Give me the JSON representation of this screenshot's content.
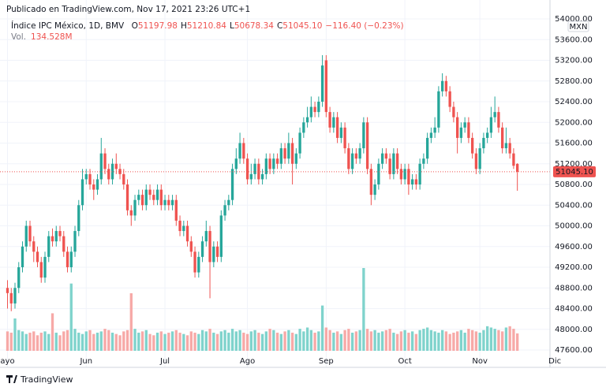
{
  "header": {
    "published": "Publicado en TradingView.com, Nov 17, 2021 23:26 UTC+1",
    "brand": "TradingView"
  },
  "chart_data": {
    "type": "candlestick",
    "title": "Índice IPC México, 1D, BMV",
    "ohlc_legend": [
      {
        "key": "O",
        "value": "51197.98"
      },
      {
        "key": "H",
        "value": "51210.84"
      },
      {
        "key": "L",
        "value": "50678.34"
      },
      {
        "key": "C",
        "value": "51045.10"
      }
    ],
    "change_label": "−116.40 (−0.23%)",
    "volume_title": "Vol.",
    "volume_value_label": "134.528M",
    "currency": "MXN",
    "last_label": "51045.10",
    "up_color": "#26a69a",
    "down_color": "#ef5350",
    "up_volume_color": "#7fd3cc",
    "down_volume_color": "#f7a9a7",
    "grid": true,
    "open": [
      48800,
      48700,
      48500,
      48800,
      49200,
      49600,
      50000,
      49700,
      49500,
      49300,
      49000,
      49400,
      49800,
      49700,
      49900,
      49800,
      49500,
      49200,
      49500,
      49900,
      50400,
      50900,
      51000,
      50800,
      50700,
      50900,
      51400,
      51100,
      50900,
      51200,
      51100,
      51000,
      50800,
      50300,
      50200,
      50500,
      50600,
      50400,
      50700,
      50600,
      50500,
      50700,
      50400,
      50500,
      50400,
      50500,
      50100,
      49900,
      50000,
      49700,
      49500,
      49100,
      49400,
      49700,
      49900,
      49300,
      49600,
      49400,
      50200,
      50400,
      50500,
      51100,
      51300,
      51600,
      51300,
      50900,
      51000,
      51200,
      50900,
      51000,
      51300,
      51100,
      51300,
      51200,
      51500,
      51300,
      51600,
      51200,
      51400,
      51800,
      52000,
      52100,
      52300,
      52200,
      52400,
      53200,
      52200,
      51900,
      52100,
      51700,
      51900,
      51500,
      51100,
      51400,
      51300,
      51500,
      52000,
      51100,
      50600,
      50800,
      51200,
      51400,
      51300,
      51000,
      51400,
      51100,
      50900,
      51100,
      50800,
      50900,
      50800,
      51200,
      51300,
      51700,
      51800,
      51900,
      52600,
      52800,
      52600,
      52300,
      52100,
      51700,
      51900,
      52000,
      51700,
      51400,
      51100,
      51500,
      51700,
      51800,
      52100,
      52200,
      51900,
      51500,
      51600,
      51400,
      51197.98
    ],
    "high": [
      48950,
      48800,
      48900,
      49300,
      49700,
      50100,
      50100,
      49800,
      49600,
      49400,
      49500,
      49900,
      49950,
      50000,
      50000,
      49900,
      49600,
      49600,
      50000,
      50500,
      51100,
      51100,
      51100,
      50900,
      51000,
      51700,
      51500,
      51200,
      51300,
      51400,
      51200,
      51100,
      50900,
      50400,
      50600,
      50700,
      50700,
      50800,
      50800,
      50700,
      50800,
      50800,
      50600,
      50600,
      50600,
      50600,
      50200,
      50100,
      50100,
      49800,
      49600,
      49500,
      49800,
      50100,
      50000,
      49700,
      49700,
      50300,
      50500,
      50600,
      51200,
      51500,
      51800,
      51700,
      51400,
      51200,
      51300,
      51300,
      51100,
      51400,
      51400,
      51400,
      51400,
      51600,
      51600,
      51800,
      51700,
      51500,
      51900,
      52100,
      52300,
      52500,
      52400,
      52500,
      53300,
      53300,
      52300,
      52200,
      52200,
      52000,
      52000,
      51600,
      51500,
      51500,
      51600,
      52100,
      52100,
      51200,
      50900,
      51300,
      51500,
      51500,
      51400,
      51500,
      51500,
      51200,
      51200,
      51200,
      51000,
      51000,
      51300,
      51400,
      51800,
      51900,
      52100,
      52700,
      52950,
      52900,
      52700,
      52400,
      52200,
      52000,
      52100,
      52100,
      51800,
      51500,
      51600,
      51800,
      51900,
      52300,
      52500,
      52300,
      52000,
      51900,
      51700,
      51500,
      51210.84
    ],
    "low": [
      48400,
      48350,
      48400,
      48700,
      49100,
      49500,
      49600,
      49300,
      49200,
      48900,
      48900,
      49300,
      49600,
      49600,
      49700,
      49400,
      49100,
      49100,
      49400,
      49800,
      50300,
      50800,
      50700,
      50500,
      50600,
      50800,
      51000,
      50800,
      50800,
      51000,
      50900,
      50700,
      50200,
      50000,
      50100,
      50400,
      50300,
      50300,
      50500,
      50400,
      50400,
      50300,
      50300,
      50300,
      50300,
      50000,
      49800,
      49800,
      49600,
      49400,
      49000,
      49000,
      49300,
      49600,
      48600,
      49200,
      49300,
      49300,
      50100,
      50300,
      50400,
      51000,
      51200,
      51200,
      50800,
      50800,
      50900,
      50800,
      50800,
      50900,
      51000,
      51000,
      51100,
      51100,
      51200,
      51200,
      50800,
      51100,
      51300,
      51700,
      51900,
      52000,
      52100,
      52100,
      52300,
      52100,
      51800,
      51800,
      51600,
      51600,
      51400,
      51000,
      51000,
      51200,
      51200,
      51400,
      51000,
      50400,
      50500,
      50700,
      51100,
      51200,
      50900,
      50900,
      51000,
      50800,
      50800,
      50600,
      50700,
      50700,
      50700,
      51100,
      51200,
      51600,
      51700,
      51800,
      52500,
      52500,
      52200,
      52000,
      51400,
      51600,
      51800,
      51600,
      51300,
      51000,
      51000,
      51400,
      51600,
      51700,
      52000,
      51800,
      51400,
      51400,
      51300,
      51100,
      50678.34
    ],
    "close": [
      48700,
      48500,
      48800,
      49200,
      49600,
      50000,
      49700,
      49500,
      49300,
      49000,
      49400,
      49800,
      49700,
      49900,
      49800,
      49500,
      49200,
      49500,
      49900,
      50400,
      50900,
      51000,
      50800,
      50700,
      50900,
      51400,
      51100,
      50900,
      51200,
      51100,
      51000,
      50800,
      50300,
      50200,
      50500,
      50600,
      50400,
      50700,
      50600,
      50500,
      50700,
      50400,
      50500,
      50400,
      50500,
      50100,
      49900,
      50000,
      49700,
      49500,
      49100,
      49400,
      49700,
      49900,
      49300,
      49600,
      49400,
      50200,
      50400,
      50500,
      51100,
      51300,
      51600,
      51300,
      50900,
      51000,
      51200,
      50900,
      51000,
      51300,
      51100,
      51300,
      51200,
      51500,
      51300,
      51600,
      51200,
      51400,
      51800,
      52000,
      52100,
      52300,
      52200,
      52400,
      53100,
      52200,
      51900,
      52100,
      51700,
      51900,
      51500,
      51100,
      51400,
      51300,
      51500,
      52000,
      51100,
      50600,
      50800,
      51200,
      51400,
      51300,
      51000,
      51400,
      51100,
      50900,
      51100,
      50800,
      50900,
      50800,
      51200,
      51300,
      51700,
      51800,
      51900,
      52600,
      52800,
      52600,
      52300,
      52100,
      51700,
      51900,
      52000,
      51700,
      51400,
      51100,
      51500,
      51700,
      51800,
      52100,
      52200,
      51900,
      51500,
      51600,
      51400,
      51161.5,
      51045.1
    ],
    "volume": [
      150,
      140,
      250,
      160,
      150,
      130,
      140,
      150,
      120,
      140,
      150,
      130,
      290,
      140,
      120,
      150,
      160,
      520,
      170,
      140,
      130,
      150,
      160,
      130,
      140,
      150,
      170,
      160,
      140,
      130,
      120,
      150,
      160,
      445,
      170,
      140,
      150,
      160,
      130,
      120,
      140,
      150,
      130,
      140,
      150,
      160,
      140,
      130,
      120,
      150,
      140,
      130,
      160,
      150,
      170,
      140,
      130,
      150,
      160,
      140,
      170,
      150,
      160,
      140,
      130,
      150,
      160,
      140,
      130,
      150,
      170,
      160,
      140,
      130,
      150,
      160,
      140,
      130,
      170,
      150,
      180,
      160,
      140,
      150,
      350,
      180,
      160,
      140,
      150,
      130,
      160,
      170,
      140,
      150,
      160,
      640,
      170,
      150,
      160,
      140,
      150,
      160,
      170,
      140,
      130,
      150,
      160,
      140,
      150,
      130,
      160,
      170,
      180,
      160,
      150,
      140,
      160,
      150,
      130,
      140,
      150,
      160,
      140,
      170,
      160,
      150,
      140,
      160,
      190,
      180,
      170,
      160,
      150,
      180,
      190,
      170,
      134.528
    ],
    "xlim": [
      -2,
      144.7
    ],
    "xticks": [
      {
        "value": 0,
        "label": "ayo"
      },
      {
        "value": 21,
        "label": "Jun"
      },
      {
        "value": 42,
        "label": "Jul"
      },
      {
        "value": 64,
        "label": "Ago"
      },
      {
        "value": 85,
        "label": "Sep"
      },
      {
        "value": 106,
        "label": "Oct"
      },
      {
        "value": 126,
        "label": "Nov"
      },
      {
        "value": 146,
        "label": "Dic"
      }
    ],
    "ylim": [
      47600,
      54000
    ],
    "yticks": [
      {
        "value": 47600,
        "label": "47600.00"
      },
      {
        "value": 48000,
        "label": "48000.00"
      },
      {
        "value": 48400,
        "label": "48400.00"
      },
      {
        "value": 48800,
        "label": "48800.00"
      },
      {
        "value": 49200,
        "label": "49200.00"
      },
      {
        "value": 49600,
        "label": "49600.00"
      },
      {
        "value": 50000,
        "label": "50000.00"
      },
      {
        "value": 50400,
        "label": "50400.00"
      },
      {
        "value": 50800,
        "label": "50800.00"
      },
      {
        "value": 51200,
        "label": "51200.00"
      },
      {
        "value": 51600,
        "label": "51600.00"
      },
      {
        "value": 52000,
        "label": "52000.00"
      },
      {
        "value": 52400,
        "label": "52400.00"
      },
      {
        "value": 52800,
        "label": "52800.00"
      },
      {
        "value": 53200,
        "label": "53200.00"
      },
      {
        "value": 53600,
        "label": "53600.00"
      },
      {
        "value": 54000,
        "label": "54000.00"
      }
    ]
  }
}
